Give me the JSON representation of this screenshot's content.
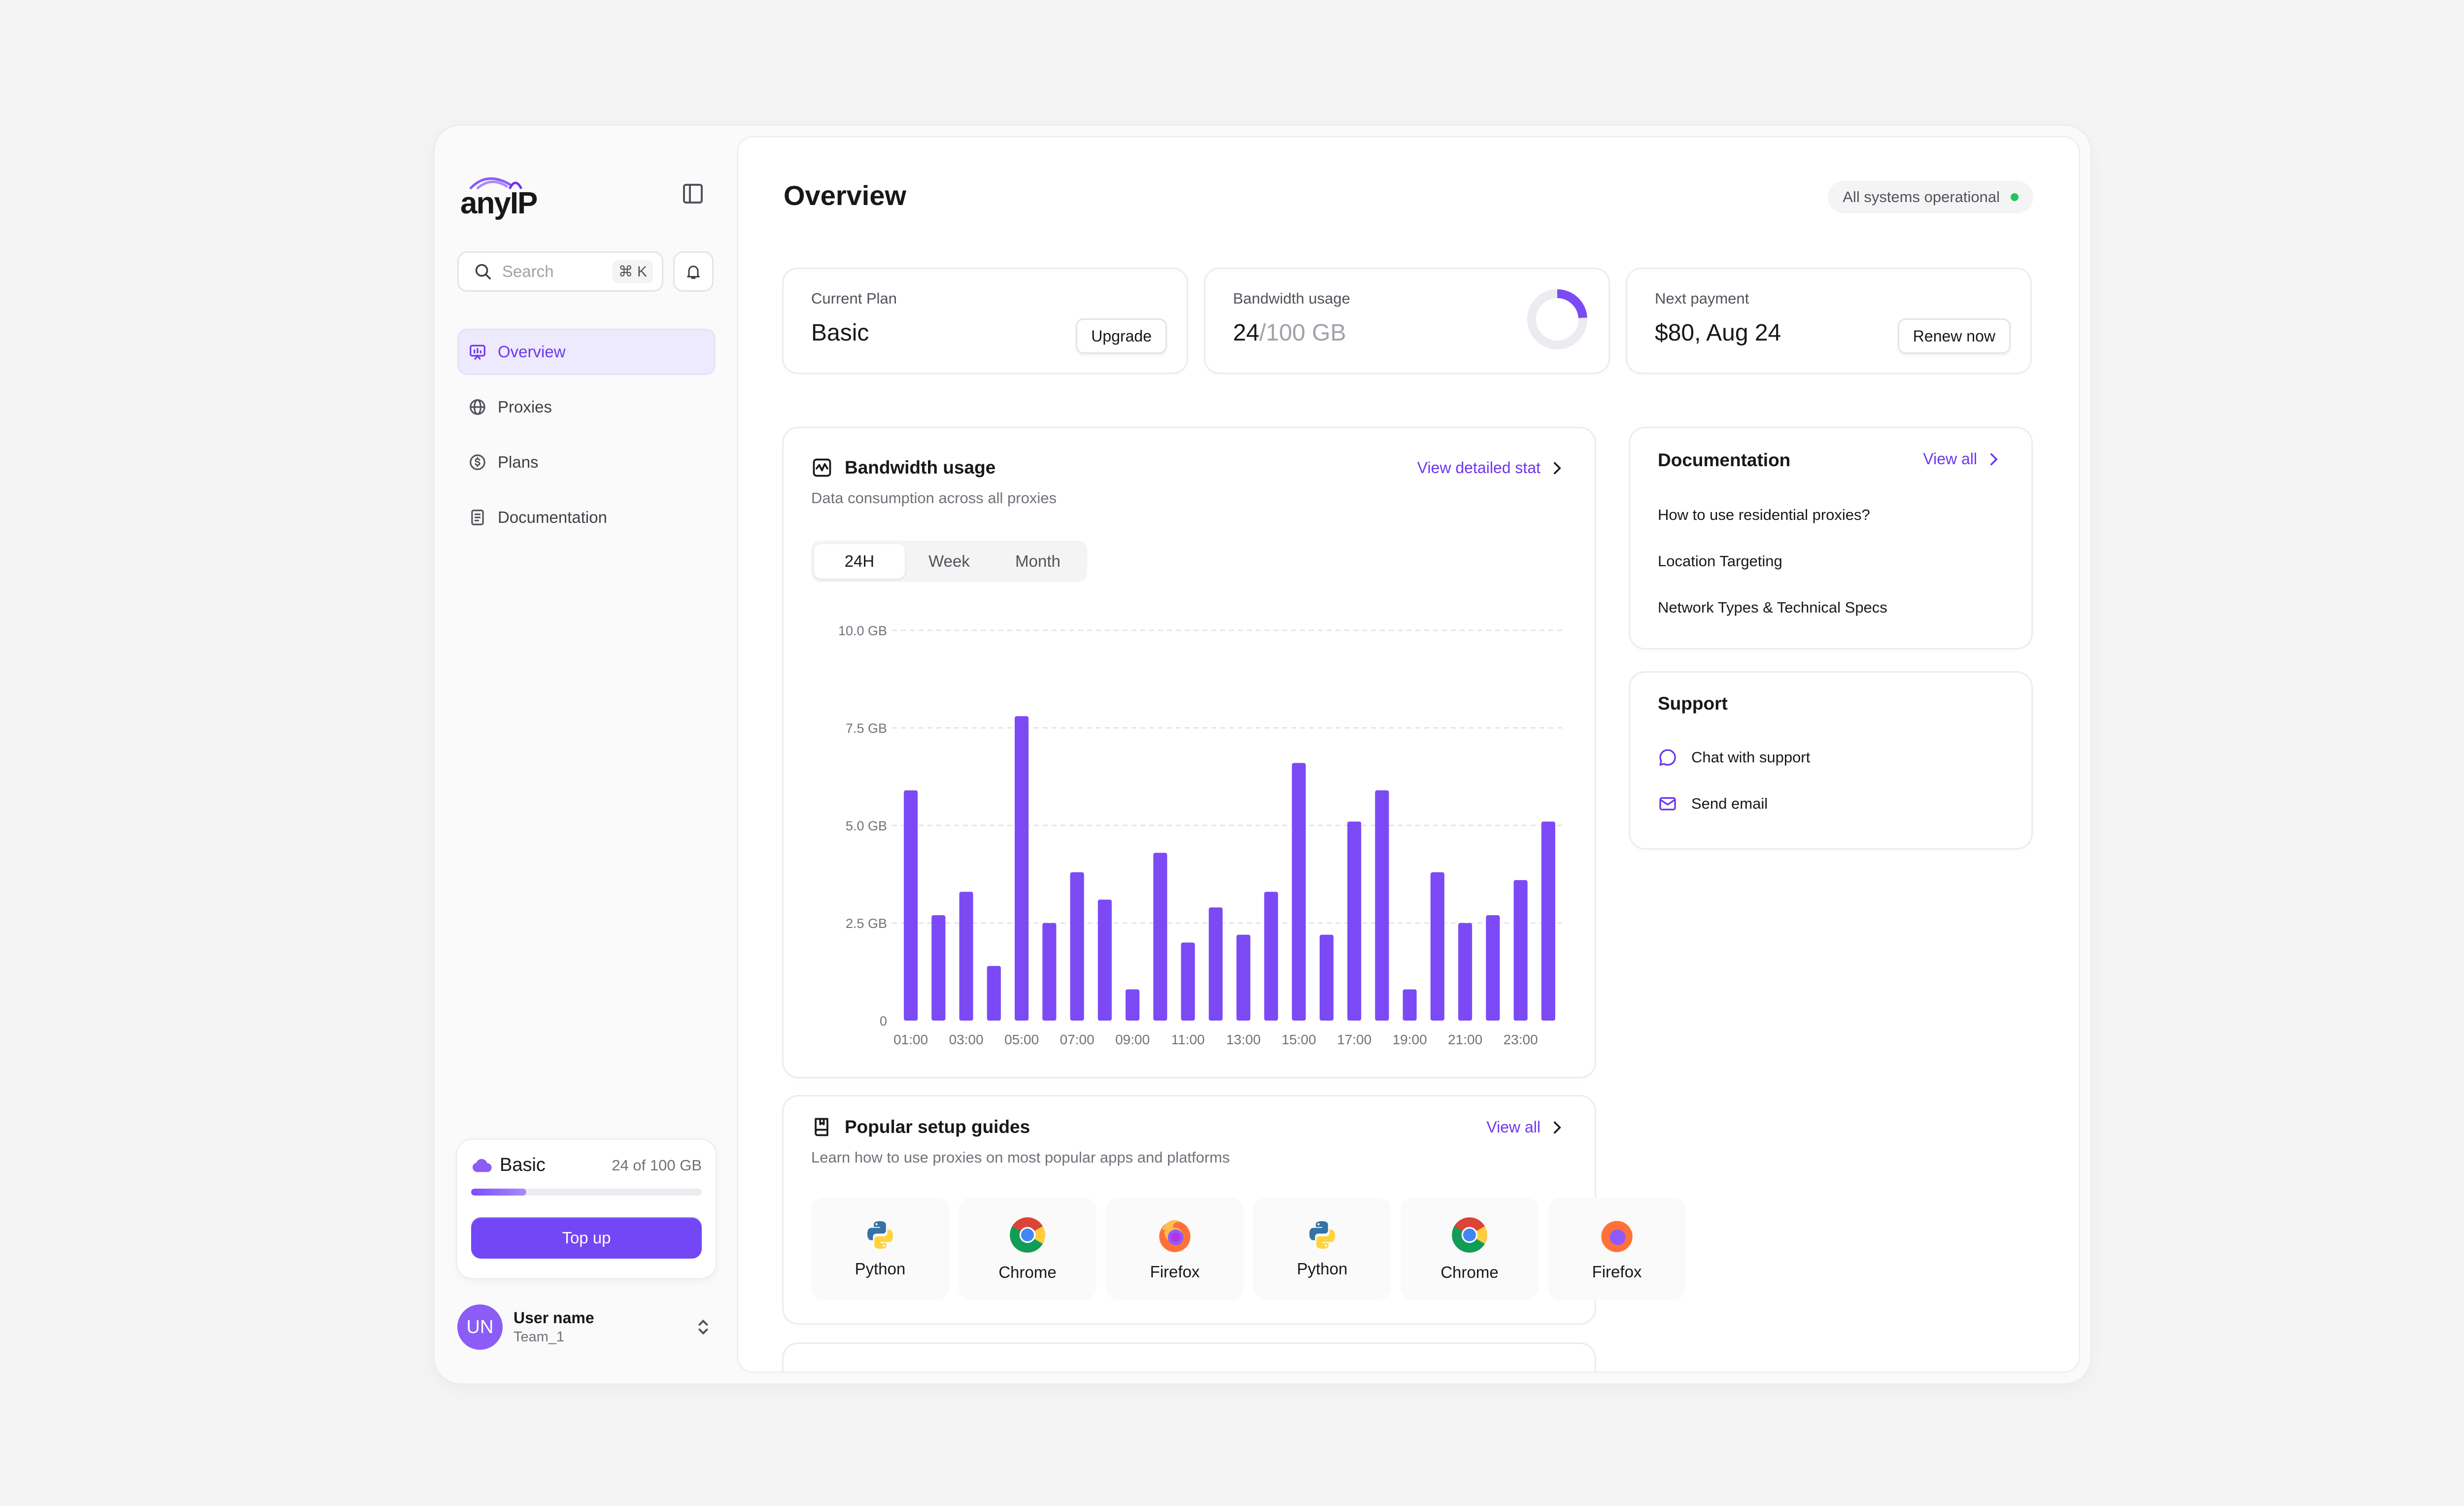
{
  "sidebar": {
    "logo_text": "anyIP",
    "search_placeholder": "Search",
    "search_shortcut": "⌘ K",
    "nav": [
      {
        "label": "Overview",
        "icon": "chart-board-icon",
        "active": true
      },
      {
        "label": "Proxies",
        "icon": "globe-icon",
        "active": false
      },
      {
        "label": "Plans",
        "icon": "dollar-icon",
        "active": false
      },
      {
        "label": "Documentation",
        "icon": "document-icon",
        "active": false
      }
    ],
    "plan": {
      "name": "Basic",
      "usage": "24 of 100 GB",
      "used_fraction": 0.24,
      "topup_label": "Top up"
    },
    "user": {
      "initials": "UN",
      "name": "User name",
      "team": "Team_1"
    }
  },
  "header": {
    "title": "Overview",
    "status": "All systems operational",
    "status_color": "#22c55e"
  },
  "stats": {
    "plan": {
      "label": "Current Plan",
      "value": "Basic",
      "button": "Upgrade"
    },
    "bandwidth": {
      "label": "Bandwidth usage",
      "used": "24",
      "total": "/100 GB",
      "used_fraction": 0.24
    },
    "payment": {
      "label": "Next payment",
      "value": "$80, Aug 24",
      "button": "Renew now"
    }
  },
  "bandwidth_card": {
    "title": "Bandwidth usage",
    "subtitle": "Data consumption across all proxies",
    "link": "View detailed stat",
    "tabs": [
      "24H",
      "Week",
      "Month"
    ],
    "active_tab": "24H"
  },
  "chart_data": {
    "type": "bar",
    "categories": [
      "01:00",
      "02:00",
      "03:00",
      "04:00",
      "05:00",
      "06:00",
      "07:00",
      "08:00",
      "09:00",
      "10:00",
      "11:00",
      "12:00",
      "13:00",
      "14:00",
      "15:00",
      "16:00",
      "17:00",
      "18:00",
      "19:00",
      "20:00",
      "21:00",
      "22:00",
      "23:00",
      "24:00"
    ],
    "tick_labels": [
      "01:00",
      "03:00",
      "05:00",
      "07:00",
      "09:00",
      "11:00",
      "13:00",
      "15:00",
      "17:00",
      "19:00",
      "21:00",
      "23:00"
    ],
    "values": [
      5.9,
      2.7,
      3.3,
      1.4,
      7.8,
      2.5,
      3.8,
      3.1,
      0.8,
      4.3,
      2.0,
      2.9,
      2.2,
      3.3,
      6.6,
      2.2,
      5.1,
      5.9,
      0.8,
      3.8,
      2.5,
      2.7,
      3.6,
      5.1
    ],
    "y_ticks": [
      "0",
      "2.5 GB",
      "5.0 GB",
      "7.5 GB",
      "10.0 GB"
    ],
    "ylim": [
      0,
      10
    ],
    "color": "#7c4af5",
    "grid": true
  },
  "guides_card": {
    "title": "Popular setup guides",
    "subtitle": "Learn how to use proxies on most popular apps and platforms",
    "link": "View all",
    "items": [
      {
        "name": "Python",
        "icon": "python-icon"
      },
      {
        "name": "Chrome",
        "icon": "chrome-icon"
      },
      {
        "name": "Firefox",
        "icon": "firefox-icon"
      },
      {
        "name": "Python",
        "icon": "python-icon"
      },
      {
        "name": "Chrome",
        "icon": "chrome-icon"
      },
      {
        "name": "Firefox",
        "icon": "firefox-icon"
      }
    ]
  },
  "docs_card": {
    "title": "Documentation",
    "link": "View all",
    "items": [
      "How to use residential proxies?",
      "Location Targeting",
      "Network Types & Technical Specs"
    ]
  },
  "support_card": {
    "title": "Support",
    "items": [
      {
        "label": "Chat with support",
        "icon": "chat-icon"
      },
      {
        "label": "Send email",
        "icon": "mail-icon"
      }
    ]
  },
  "colors": {
    "accent": "#6d36f0",
    "bar": "#7c4af5"
  }
}
